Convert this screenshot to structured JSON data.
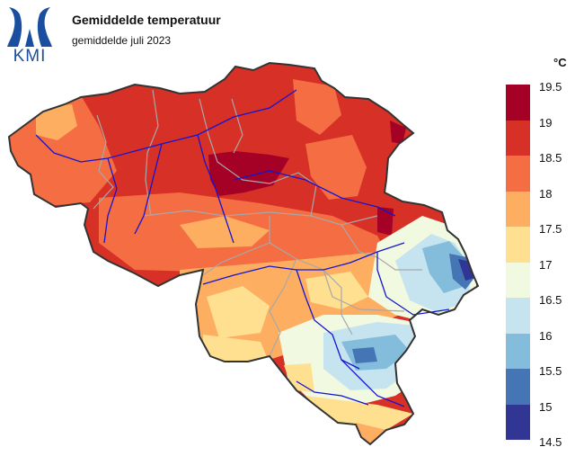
{
  "logo": {
    "text": "KMI",
    "color": "#1a4fa0"
  },
  "title": "Gemiddelde temperatuur",
  "subtitle": "gemiddelde juli 2023",
  "legend": {
    "unit": "°C",
    "ticks": [
      "19.5",
      "19",
      "18.5",
      "18",
      "17.5",
      "17",
      "16.5",
      "16",
      "15.5",
      "15",
      "14.5"
    ],
    "colors": [
      "#a50026",
      "#d73027",
      "#f46d43",
      "#fdae61",
      "#fee090",
      "#f2f9e1",
      "#c6e4f0",
      "#84bcdb",
      "#4575b4",
      "#313695"
    ]
  },
  "map": {
    "border_color": "#333333",
    "province_border_color": "#a8a8a8",
    "river_color": "#1515d0"
  }
}
